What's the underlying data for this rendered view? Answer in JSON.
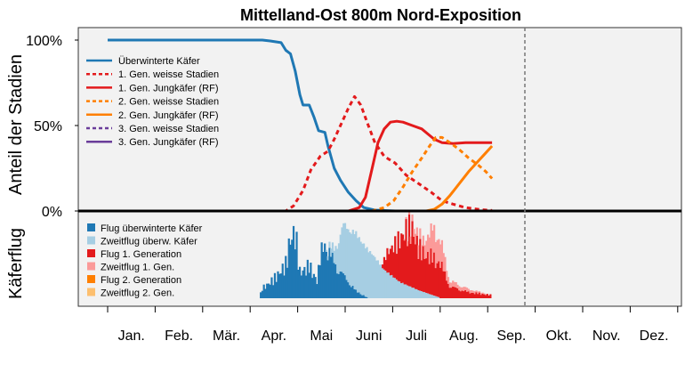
{
  "chart_data": {
    "type": "line",
    "title": "Mittelland-Ost 800m Nord-Exposition",
    "ylabel_top": "Anteil der Stadien",
    "ylabel_bottom": "Käferflug",
    "yticks": [
      "100%",
      "50%",
      "0%"
    ],
    "ylim": [
      0,
      1.05
    ],
    "grid": false,
    "current_date_marker": "Sep.",
    "months": [
      "Jan.",
      "Feb.",
      "Mär.",
      "Apr.",
      "Mai",
      "Juni",
      "Juli",
      "Aug.",
      "Sep.",
      "Okt.",
      "Nov.",
      "Dez."
    ],
    "colors": {
      "overwintered": "#1f78b4",
      "reflight_overwintered": "#a6cee3",
      "gen1": "#e31a1c",
      "reflight_gen1": "#fb9a99",
      "gen2": "#ff7f00",
      "reflight_gen2": "#fdbf6f",
      "gen3": "#6a3d9a",
      "panel_bg": "#f2f2f2"
    },
    "legend_lines": [
      {
        "label": "Überwinterte Käfer",
        "color": "#1f78b4",
        "dash": false
      },
      {
        "label": "1. Gen. weisse Stadien",
        "color": "#e31a1c",
        "dash": true
      },
      {
        "label": "1. Gen. Jungkäfer (RF)",
        "color": "#e31a1c",
        "dash": false
      },
      {
        "label": "2. Gen. weisse Stadien",
        "color": "#ff7f00",
        "dash": true
      },
      {
        "label": "2. Gen. Jungkäfer (RF)",
        "color": "#ff7f00",
        "dash": false
      },
      {
        "label": "3. Gen. weisse Stadien",
        "color": "#6a3d9a",
        "dash": true
      },
      {
        "label": "3. Gen. Jungkäfer (RF)",
        "color": "#6a3d9a",
        "dash": false
      }
    ],
    "legend_bars": [
      {
        "label": "Flug überwinterte Käfer",
        "color": "#1f78b4"
      },
      {
        "label": "Zweitflug überw. Käfer",
        "color": "#a6cee3"
      },
      {
        "label": "Flug 1. Generation",
        "color": "#e31a1c"
      },
      {
        "label": "Zweitflug 1. Gen.",
        "color": "#fb9a99"
      },
      {
        "label": "Flug 2. Generation",
        "color": "#ff7f00"
      },
      {
        "label": "Zweitflug 2. Gen.",
        "color": "#fdbf6f"
      }
    ],
    "series": [
      {
        "name": "Überwinterte Käfer",
        "key": "overwintered",
        "dash": false,
        "points": [
          [
            1,
            1.0
          ],
          [
            60,
            1.0
          ],
          [
            100,
            1.0
          ],
          [
            105,
            0.995
          ],
          [
            112,
            0.985
          ],
          [
            115,
            0.94
          ],
          [
            118,
            0.92
          ],
          [
            121,
            0.82
          ],
          [
            124,
            0.68
          ],
          [
            126,
            0.62
          ],
          [
            130,
            0.62
          ],
          [
            133,
            0.55
          ],
          [
            136,
            0.47
          ],
          [
            140,
            0.46
          ],
          [
            142,
            0.38
          ],
          [
            146,
            0.25
          ],
          [
            150,
            0.18
          ],
          [
            155,
            0.11
          ],
          [
            160,
            0.06
          ],
          [
            165,
            0.02
          ],
          [
            172,
            0.005
          ],
          [
            185,
            0
          ]
        ]
      },
      {
        "name": "1. Gen. weisse Stadien",
        "key": "gen1",
        "dash": true,
        "points": [
          [
            1,
            0
          ],
          [
            115,
            0
          ],
          [
            120,
            0.03
          ],
          [
            126,
            0.12
          ],
          [
            131,
            0.24
          ],
          [
            137,
            0.32
          ],
          [
            142,
            0.35
          ],
          [
            146,
            0.42
          ],
          [
            150,
            0.5
          ],
          [
            155,
            0.6
          ],
          [
            159,
            0.67
          ],
          [
            163,
            0.62
          ],
          [
            167,
            0.52
          ],
          [
            172,
            0.4
          ],
          [
            178,
            0.32
          ],
          [
            185,
            0.28
          ],
          [
            192,
            0.21
          ],
          [
            200,
            0.16
          ],
          [
            208,
            0.11
          ],
          [
            215,
            0.06
          ],
          [
            222,
            0.04
          ],
          [
            230,
            0.02
          ],
          [
            240,
            0.008
          ],
          [
            247,
            0.003
          ]
        ]
      },
      {
        "name": "1. Gen. Jungkäfer (RF)",
        "key": "gen1",
        "dash": false,
        "points": [
          [
            1,
            0
          ],
          [
            155,
            0
          ],
          [
            162,
            0.02
          ],
          [
            166,
            0.08
          ],
          [
            170,
            0.24
          ],
          [
            174,
            0.4
          ],
          [
            178,
            0.48
          ],
          [
            182,
            0.52
          ],
          [
            186,
            0.525
          ],
          [
            190,
            0.52
          ],
          [
            196,
            0.5
          ],
          [
            202,
            0.48
          ],
          [
            206,
            0.45
          ],
          [
            210,
            0.42
          ],
          [
            215,
            0.4
          ],
          [
            222,
            0.395
          ],
          [
            230,
            0.4
          ],
          [
            240,
            0.4
          ],
          [
            247,
            0.4
          ]
        ]
      },
      {
        "name": "2. Gen. weisse Stadien",
        "key": "gen2",
        "dash": true,
        "points": [
          [
            1,
            0
          ],
          [
            170,
            0
          ],
          [
            178,
            0.02
          ],
          [
            184,
            0.06
          ],
          [
            190,
            0.14
          ],
          [
            196,
            0.23
          ],
          [
            202,
            0.31
          ],
          [
            207,
            0.38
          ],
          [
            211,
            0.43
          ],
          [
            215,
            0.43
          ],
          [
            220,
            0.4
          ],
          [
            226,
            0.36
          ],
          [
            232,
            0.31
          ],
          [
            238,
            0.27
          ],
          [
            243,
            0.23
          ],
          [
            247,
            0.19
          ]
        ]
      },
      {
        "name": "2. Gen. Jungkäfer (RF)",
        "key": "gen2",
        "dash": false,
        "points": [
          [
            1,
            0
          ],
          [
            205,
            0
          ],
          [
            210,
            0.01
          ],
          [
            215,
            0.04
          ],
          [
            220,
            0.09
          ],
          [
            226,
            0.16
          ],
          [
            232,
            0.23
          ],
          [
            238,
            0.29
          ],
          [
            243,
            0.34
          ],
          [
            247,
            0.38
          ]
        ]
      }
    ]
  }
}
